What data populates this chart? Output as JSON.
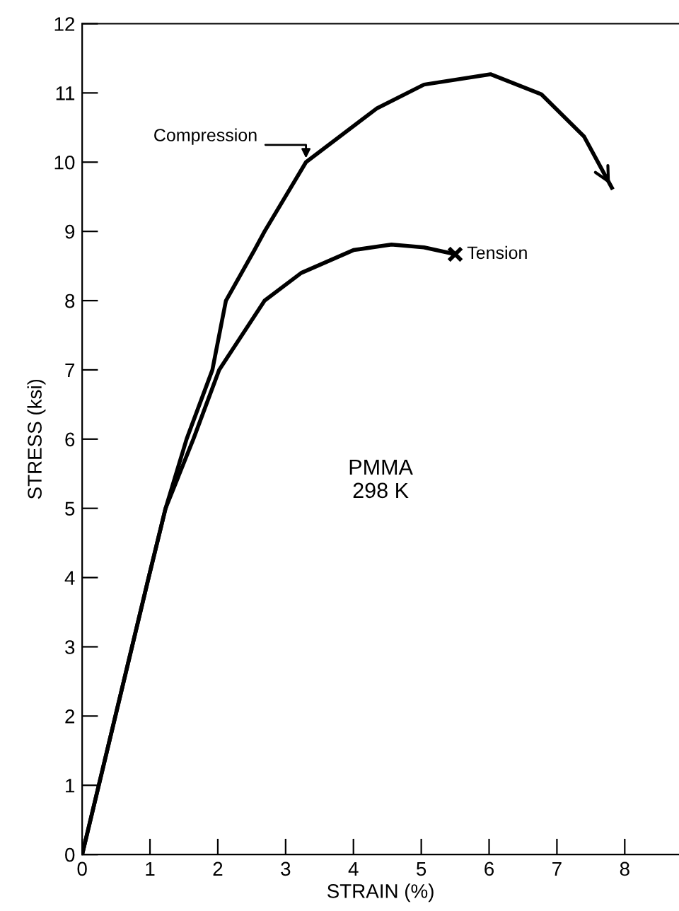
{
  "chart_data": {
    "type": "line",
    "xlabel": "STRAIN (%)",
    "ylabel": "STRESS (ksi)",
    "xlim": [
      0,
      8.8
    ],
    "ylim": [
      0,
      12
    ],
    "xticks": [
      0,
      1,
      2,
      3,
      4,
      5,
      6,
      7,
      8
    ],
    "yticks": [
      0,
      1,
      2,
      3,
      4,
      5,
      6,
      7,
      8,
      9,
      10,
      11,
      12
    ],
    "grid": false,
    "legend": false,
    "marker": "none",
    "line_style": "solid",
    "series": [
      {
        "color": "#000000",
        "x": [
          0,
          0.98,
          1.23,
          1.54,
          1.92,
          2.12,
          2.54,
          2.69,
          3.3,
          4.35,
          5.04,
          6.02,
          6.77,
          7.4,
          7.81
        ],
        "values": [
          0,
          4,
          5,
          6,
          7,
          8,
          8.73,
          9,
          10,
          10.78,
          11.12,
          11.27,
          10.98,
          10.37,
          9.63
        ]
      },
      {
        "color": "#000000",
        "x": [
          0,
          0.98,
          1.23,
          1.64,
          2.02,
          2.69,
          3.23,
          4.0,
          4.56,
          5.04,
          5.5
        ],
        "values": [
          0,
          4,
          5,
          6,
          7,
          8,
          8.4,
          8.73,
          8.81,
          8.77,
          8.67
        ]
      },
      {
        "type": "scatter",
        "marker": "cross",
        "color": "#000000",
        "x": [
          5.5
        ],
        "values": [
          8.67
        ]
      }
    ],
    "annotations": [
      {
        "text": "Compression",
        "x": 3.3,
        "y": 10
      },
      {
        "text": "Tension",
        "x": 5.5,
        "y": 8.67
      },
      "PMMA\n298 K"
    ]
  }
}
